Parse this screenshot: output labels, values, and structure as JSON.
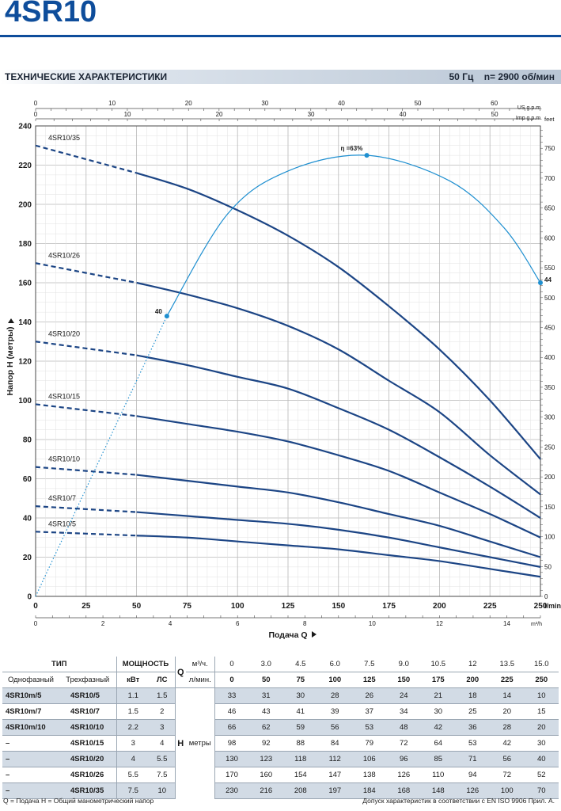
{
  "header": {
    "title": "4SR10"
  },
  "specs": {
    "label": "ТЕХНИЧЕСКИЕ ХАРАКТЕРИСТИКИ",
    "freq": "50 Гц",
    "speed": "n= 2900 об/мин"
  },
  "chart_data": {
    "type": "line",
    "ylabel": "Напор H (метры)",
    "xlabel": "Подача Q",
    "ylim": [
      0,
      240
    ],
    "xlim": [
      0,
      250
    ],
    "x_unit": "l/min",
    "x2_unit": "m³/h",
    "top1_unit": "US g.p.m.",
    "top2_unit": "Imp g.p.m.",
    "right_unit": "feet",
    "y_ticks": [
      0,
      20,
      40,
      60,
      80,
      100,
      120,
      140,
      160,
      180,
      200,
      220,
      240
    ],
    "x_ticks": [
      0,
      25,
      50,
      75,
      100,
      125,
      150,
      175,
      200,
      225,
      250
    ],
    "x2_ticks": [
      0,
      2,
      4,
      6,
      8,
      10,
      12,
      14
    ],
    "top1_ticks": [
      0,
      10,
      20,
      30,
      40,
      50,
      60
    ],
    "top2_ticks": [
      0,
      10,
      20,
      30,
      40,
      50
    ],
    "right_ticks": [
      0,
      50,
      100,
      150,
      200,
      250,
      300,
      350,
      400,
      450,
      500,
      550,
      600,
      650,
      700,
      750
    ],
    "x": [
      0,
      50,
      75,
      100,
      125,
      150,
      175,
      200,
      225,
      250
    ],
    "series": [
      {
        "name": "4SR10/35",
        "values": [
          230,
          216,
          208,
          197,
          184,
          168,
          148,
          126,
          100,
          70
        ]
      },
      {
        "name": "4SR10/26",
        "values": [
          170,
          160,
          154,
          147,
          138,
          126,
          110,
          94,
          72,
          52
        ]
      },
      {
        "name": "4SR10/20",
        "values": [
          130,
          123,
          118,
          112,
          106,
          96,
          85,
          71,
          56,
          40
        ]
      },
      {
        "name": "4SR10/15",
        "values": [
          98,
          92,
          88,
          84,
          79,
          72,
          64,
          53,
          42,
          30
        ]
      },
      {
        "name": "4SR10/10",
        "values": [
          66,
          62,
          59,
          56,
          53,
          48,
          42,
          36,
          28,
          20
        ]
      },
      {
        "name": "4SR10/7",
        "values": [
          46,
          43,
          41,
          39,
          37,
          34,
          30,
          25,
          20,
          15
        ]
      },
      {
        "name": "4SR10/5",
        "values": [
          33,
          31,
          30,
          28,
          26,
          24,
          21,
          18,
          14,
          10
        ]
      }
    ],
    "efficiency": {
      "label": "η =63%",
      "points": [
        {
          "x": 0,
          "y": 0
        },
        {
          "x": 65,
          "y": 143,
          "label": "40"
        },
        {
          "x": 164,
          "y": 225
        },
        {
          "x": 250,
          "y": 160,
          "label": "44"
        }
      ]
    }
  },
  "table": {
    "header": {
      "type": "ТИП",
      "power": "МОЩНОСТЬ",
      "single": "Однофазный",
      "three": "Трехфазный",
      "kw": "кВт",
      "hp": "ЛС",
      "q_letter": "Q",
      "q_unit1": "м³/ч.",
      "q_unit2": "л/мин.",
      "h_letter": "H",
      "h_unit": "метры",
      "m3h": [
        "0",
        "3.0",
        "4.5",
        "6.0",
        "7.5",
        "9.0",
        "10.5",
        "12",
        "13.5",
        "15.0"
      ],
      "lmin": [
        "0",
        "50",
        "75",
        "100",
        "125",
        "150",
        "175",
        "200",
        "225",
        "250"
      ]
    },
    "rows": [
      {
        "single": "4SR10m/5",
        "three": "4SR10/5",
        "kw": "1.1",
        "hp": "1.5",
        "h": [
          "33",
          "31",
          "30",
          "28",
          "26",
          "24",
          "21",
          "18",
          "14",
          "10"
        ]
      },
      {
        "single": "4SR10m/7",
        "three": "4SR10/7",
        "kw": "1.5",
        "hp": "2",
        "h": [
          "46",
          "43",
          "41",
          "39",
          "37",
          "34",
          "30",
          "25",
          "20",
          "15"
        ]
      },
      {
        "single": "4SR10m/10",
        "three": "4SR10/10",
        "kw": "2.2",
        "hp": "3",
        "h": [
          "66",
          "62",
          "59",
          "56",
          "53",
          "48",
          "42",
          "36",
          "28",
          "20"
        ]
      },
      {
        "single": "–",
        "three": "4SR10/15",
        "kw": "3",
        "hp": "4",
        "h": [
          "98",
          "92",
          "88",
          "84",
          "79",
          "72",
          "64",
          "53",
          "42",
          "30"
        ]
      },
      {
        "single": "–",
        "three": "4SR10/20",
        "kw": "4",
        "hp": "5.5",
        "h": [
          "130",
          "123",
          "118",
          "112",
          "106",
          "96",
          "85",
          "71",
          "56",
          "40"
        ]
      },
      {
        "single": "–",
        "three": "4SR10/26",
        "kw": "5.5",
        "hp": "7.5",
        "h": [
          "170",
          "160",
          "154",
          "147",
          "138",
          "126",
          "110",
          "94",
          "72",
          "52"
        ]
      },
      {
        "single": "–",
        "three": "4SR10/35",
        "kw": "7.5",
        "hp": "10",
        "h": [
          "230",
          "216",
          "208",
          "197",
          "184",
          "168",
          "148",
          "126",
          "100",
          "70"
        ]
      }
    ]
  },
  "footnote": {
    "left": "Q = Подача   H = Общий манометрический напор",
    "right": "Допуск характеристик в соответствии с EN ISO 9906 Прил. А."
  },
  "colors": {
    "curve": "#1c4585",
    "efficiency": "#1e8fd0",
    "title": "#0e4d9b",
    "grid": "#c9c9c9"
  }
}
